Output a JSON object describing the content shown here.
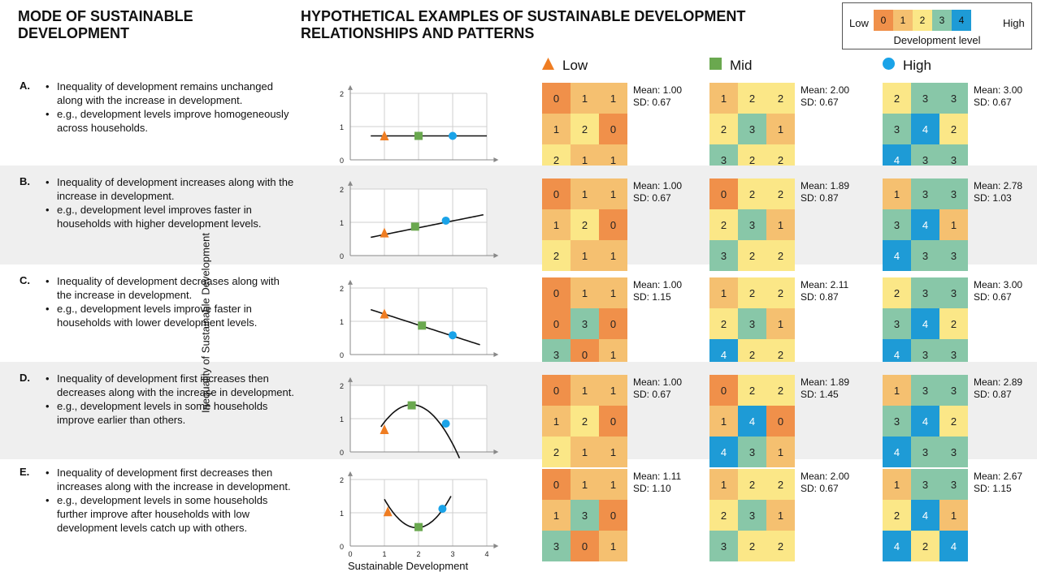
{
  "titles": {
    "left": "MODE OF SUSTAINABLE DEVELOPMENT",
    "right": "HYPOTHETICAL EXAMPLES OF SUSTAINABLE DEVELOPMENT RELATIONSHIPS AND PATTERNS"
  },
  "legend": {
    "low": "Low",
    "high": "High",
    "caption": "Development level",
    "levels": [
      "0",
      "1",
      "2",
      "3",
      "4"
    ],
    "colors": [
      "#f0904a",
      "#f5c070",
      "#fbe787",
      "#88c7a8",
      "#1e9bd6"
    ]
  },
  "columns": [
    {
      "label": "Low",
      "marker": "triangle",
      "color": "#ef7d22"
    },
    {
      "label": "Mid",
      "marker": "square",
      "color": "#6aa84f"
    },
    {
      "label": "High",
      "marker": "circle",
      "color": "#1aa3e8"
    }
  ],
  "axes": {
    "ylabel": "Inequality of Sustainable Development",
    "xlabel": "Sustainable Development",
    "yticks": [
      "0",
      "1",
      "2"
    ],
    "xticks": [
      "0",
      "1",
      "2",
      "3",
      "4"
    ]
  },
  "rows": [
    {
      "letter": "A.",
      "bullets": [
        "Inequality of development remains unchanged along with the increase in development.",
        "e.g., development levels improve homogeneously across households."
      ],
      "curve": "flat",
      "points": [
        {
          "x": 1,
          "y": 0.72
        },
        {
          "x": 2,
          "y": 0.72
        },
        {
          "x": 3,
          "y": 0.72
        }
      ],
      "grids": [
        {
          "values": [
            [
              0,
              1,
              1
            ],
            [
              1,
              2,
              0
            ],
            [
              2,
              1,
              1
            ]
          ],
          "mean": "Mean: 1.00",
          "sd": "SD: 0.67"
        },
        {
          "values": [
            [
              1,
              2,
              2
            ],
            [
              2,
              3,
              1
            ],
            [
              3,
              2,
              2
            ]
          ],
          "mean": "Mean: 2.00",
          "sd": "SD: 0.67"
        },
        {
          "values": [
            [
              2,
              3,
              3
            ],
            [
              3,
              4,
              2
            ],
            [
              4,
              3,
              3
            ]
          ],
          "mean": "Mean: 3.00",
          "sd": "SD: 0.67"
        }
      ]
    },
    {
      "letter": "B.",
      "bullets": [
        "Inequality of development increases along with the increase in development.",
        "e.g., development level improves faster in households with higher development levels."
      ],
      "curve": "increasing",
      "points": [
        {
          "x": 1,
          "y": 0.68
        },
        {
          "x": 1.9,
          "y": 0.87
        },
        {
          "x": 2.8,
          "y": 1.05
        }
      ],
      "grids": [
        {
          "values": [
            [
              0,
              1,
              1
            ],
            [
              1,
              2,
              0
            ],
            [
              2,
              1,
              1
            ]
          ],
          "mean": "Mean: 1.00",
          "sd": "SD: 0.67"
        },
        {
          "values": [
            [
              0,
              2,
              2
            ],
            [
              2,
              3,
              1
            ],
            [
              3,
              2,
              2
            ]
          ],
          "mean": "Mean: 1.89",
          "sd": "SD: 0.87"
        },
        {
          "values": [
            [
              1,
              3,
              3
            ],
            [
              3,
              4,
              1
            ],
            [
              4,
              3,
              3
            ]
          ],
          "mean": "Mean: 2.78",
          "sd": "SD: 1.03"
        }
      ]
    },
    {
      "letter": "C.",
      "bullets": [
        "Inequality of development decreases along with the increase in development.",
        "e.g., development levels improve faster in households with lower development levels."
      ],
      "curve": "decreasing",
      "points": [
        {
          "x": 1,
          "y": 1.22
        },
        {
          "x": 2.1,
          "y": 0.87
        },
        {
          "x": 3,
          "y": 0.58
        }
      ],
      "grids": [
        {
          "values": [
            [
              0,
              1,
              1
            ],
            [
              0,
              3,
              0
            ],
            [
              3,
              0,
              1
            ]
          ],
          "mean": "Mean: 1.00",
          "sd": "SD: 1.15"
        },
        {
          "values": [
            [
              1,
              2,
              2
            ],
            [
              2,
              3,
              1
            ],
            [
              4,
              2,
              2
            ]
          ],
          "mean": "Mean: 2.11",
          "sd": "SD: 0.87"
        },
        {
          "values": [
            [
              2,
              3,
              3
            ],
            [
              3,
              4,
              2
            ],
            [
              4,
              3,
              3
            ]
          ],
          "mean": "Mean: 3.00",
          "sd": "SD: 0.67"
        }
      ]
    },
    {
      "letter": "D.",
      "bullets": [
        "Inequality of development first increases then decreases along with the increase in development.",
        "e.g., development levels in some households improve earlier than others."
      ],
      "curve": "inverted-u",
      "points": [
        {
          "x": 1,
          "y": 0.67
        },
        {
          "x": 1.8,
          "y": 1.4
        },
        {
          "x": 2.8,
          "y": 0.85
        }
      ],
      "grids": [
        {
          "values": [
            [
              0,
              1,
              1
            ],
            [
              1,
              2,
              0
            ],
            [
              2,
              1,
              1
            ]
          ],
          "mean": "Mean: 1.00",
          "sd": "SD: 0.67"
        },
        {
          "values": [
            [
              0,
              2,
              2
            ],
            [
              1,
              4,
              0
            ],
            [
              4,
              3,
              1
            ]
          ],
          "mean": "Mean: 1.89",
          "sd": "SD: 1.45"
        },
        {
          "values": [
            [
              1,
              3,
              3
            ],
            [
              3,
              4,
              2
            ],
            [
              4,
              3,
              3
            ]
          ],
          "mean": "Mean: 2.89",
          "sd": "SD: 0.87"
        }
      ]
    },
    {
      "letter": "E.",
      "bullets": [
        "Inequality of development first decreases then increases along with the increase in development.",
        "e.g., development levels in some households further improve after households with low development levels catch up with others."
      ],
      "curve": "u",
      "points": [
        {
          "x": 1.1,
          "y": 1.03
        },
        {
          "x": 2,
          "y": 0.57
        },
        {
          "x": 2.7,
          "y": 1.12
        }
      ],
      "grids": [
        {
          "values": [
            [
              0,
              1,
              1
            ],
            [
              1,
              3,
              0
            ],
            [
              3,
              0,
              1
            ]
          ],
          "mean": "Mean: 1.11",
          "sd": "SD: 1.10"
        },
        {
          "values": [
            [
              1,
              2,
              2
            ],
            [
              2,
              3,
              1
            ],
            [
              3,
              2,
              2
            ]
          ],
          "mean": "Mean: 2.00",
          "sd": "SD: 0.67"
        },
        {
          "values": [
            [
              1,
              3,
              3
            ],
            [
              2,
              4,
              1
            ],
            [
              4,
              2,
              4
            ]
          ],
          "mean": "Mean: 2.67",
          "sd": "SD: 1.15"
        }
      ]
    }
  ]
}
